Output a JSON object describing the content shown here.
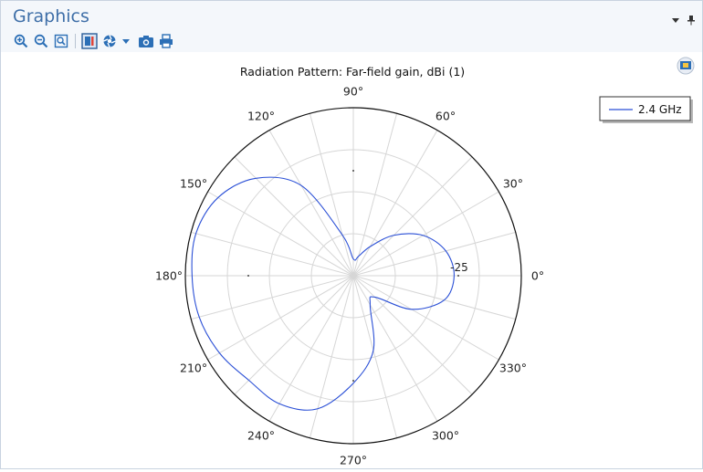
{
  "panel": {
    "title": "Graphics",
    "toolbar_icons": [
      "zoom-in-icon",
      "zoom-out-icon",
      "zoom-extents-icon",
      "scene-light-icon",
      "color-table-icon",
      "dropdown-icon",
      "camera-icon",
      "print-icon"
    ]
  },
  "colors": {
    "accent": "#3f6fa8",
    "series": "#2a4fd6",
    "grid": "#d6d6d6"
  },
  "chart_data": {
    "type": "polar-line",
    "title": "Radiation Pattern: Far-field gain, dBi (1)",
    "angle_ticks": [
      "0°",
      "30°",
      "60°",
      "90°",
      "120°",
      "150°",
      "180°",
      "210°",
      "240°",
      "270°",
      "300°",
      "330°"
    ],
    "angle_tick_values_deg": [
      0,
      30,
      60,
      90,
      120,
      150,
      180,
      210,
      240,
      270,
      300,
      330
    ],
    "radial_label": "-25",
    "radial_gridlines": 3,
    "angular_gridline_step_deg": 15,
    "legend": {
      "position": "top-right",
      "entries": [
        "2.4 GHz"
      ]
    },
    "series": [
      {
        "name": "2.4 GHz",
        "theta_deg": [
          0,
          15,
          30,
          45,
          60,
          75,
          90,
          105,
          120,
          135,
          150,
          165,
          180,
          195,
          210,
          225,
          240,
          255,
          270,
          285,
          300,
          315,
          330,
          345,
          360
        ],
        "r": [
          0.6,
          0.57,
          0.48,
          0.34,
          0.2,
          0.12,
          0.1,
          0.25,
          0.62,
          0.82,
          0.93,
          0.97,
          0.96,
          0.95,
          0.92,
          0.88,
          0.88,
          0.82,
          0.64,
          0.46,
          0.2,
          0.18,
          0.4,
          0.56,
          0.6
        ]
      }
    ]
  }
}
